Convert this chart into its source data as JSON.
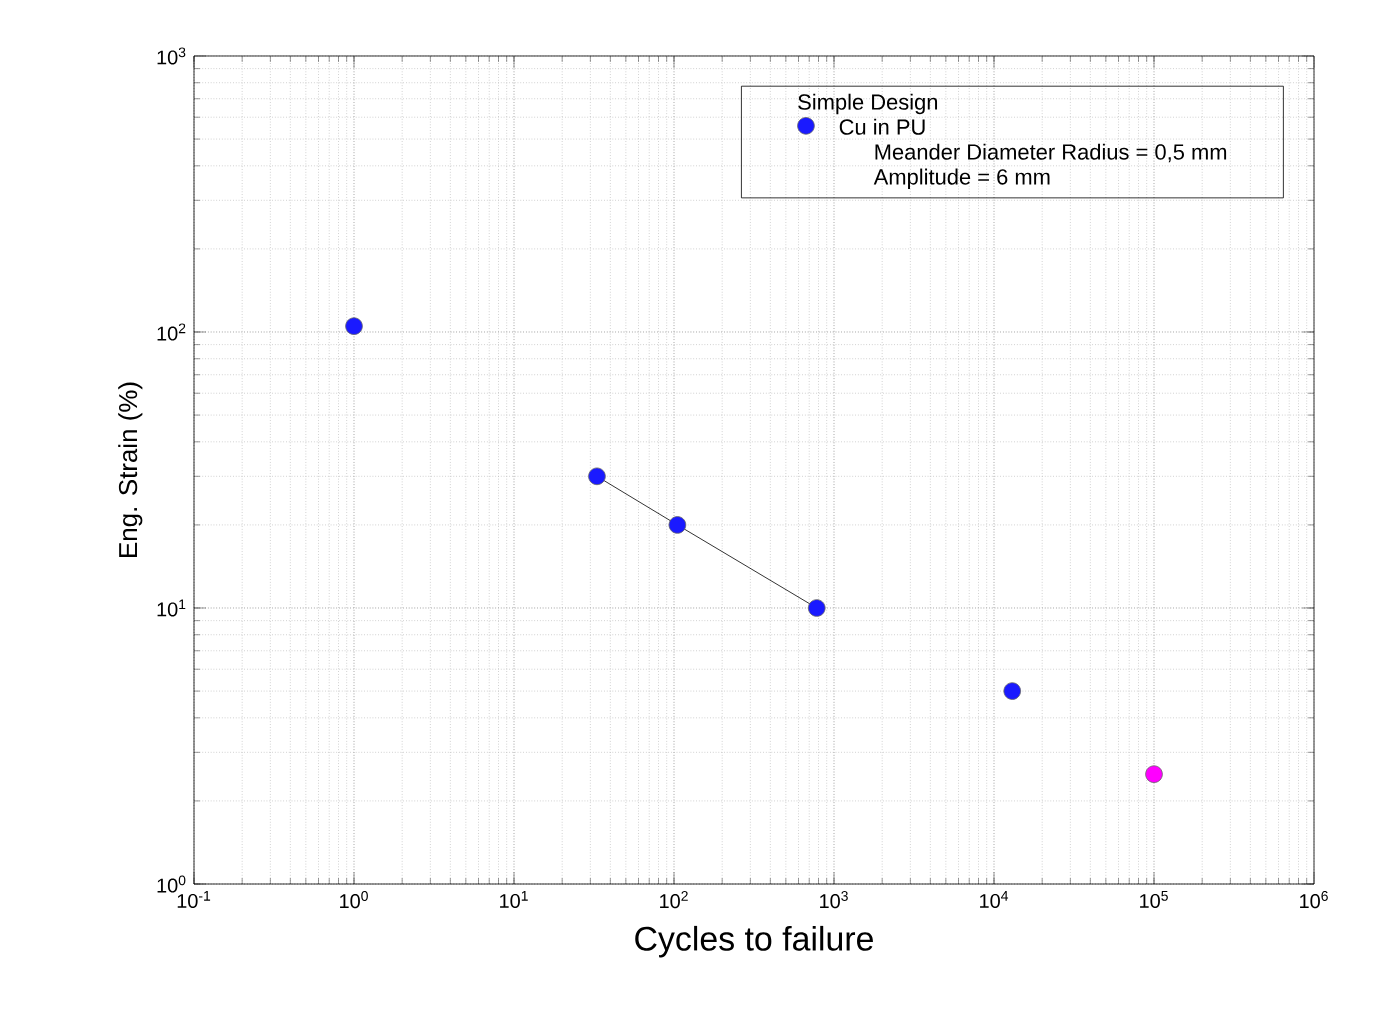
{
  "chart_data": {
    "type": "scatter",
    "xlabel": "Cycles to failure",
    "ylabel": "Eng. Strain (%)",
    "legend_title": "Simple Design",
    "annotations": [
      "Meander Diameter Radius  = 0,5 mm",
      "Amplitude  = 6 mm"
    ],
    "log": "xy",
    "grid": true,
    "legend": "top right",
    "xlim": [
      0.1,
      1000000
    ],
    "ylim": [
      1,
      1000
    ],
    "xticks": [
      {
        "value": 0.1,
        "label": "10$^{-1}$"
      },
      {
        "value": 1,
        "label": "10$^{0}$"
      },
      {
        "value": 10,
        "label": "10$^{1}$"
      },
      {
        "value": 100,
        "label": "10$^{2}$"
      },
      {
        "value": 1000,
        "label": "10$^{3}$"
      },
      {
        "value": 10000,
        "label": "10$^{4}$"
      },
      {
        "value": 100000,
        "label": "10$^{5}$"
      },
      {
        "value": 1000000,
        "label": "10$^{6}$"
      }
    ],
    "yticks": [
      {
        "value": 1,
        "label": "10$^{0}$"
      },
      {
        "value": 10,
        "label": "10$^{1}$"
      },
      {
        "value": 100,
        "label": "10$^{2}$"
      },
      {
        "value": 1000,
        "label": "10$^{3}$"
      }
    ],
    "series": [
      {
        "type": "line",
        "marker": "none",
        "color": "#000000",
        "x": [
          33,
          105,
          780
        ],
        "values": [
          30,
          20,
          10
        ]
      },
      {
        "name": "Cu in PU",
        "marker": "circle",
        "color": "#1a1aff",
        "x": [
          1,
          33,
          105,
          780,
          13000
        ],
        "values": [
          105,
          30,
          20,
          10,
          5
        ]
      },
      {
        "marker": "circle",
        "color": "#ff00ff",
        "x": [
          100000
        ],
        "values": [
          2.5
        ]
      }
    ]
  }
}
